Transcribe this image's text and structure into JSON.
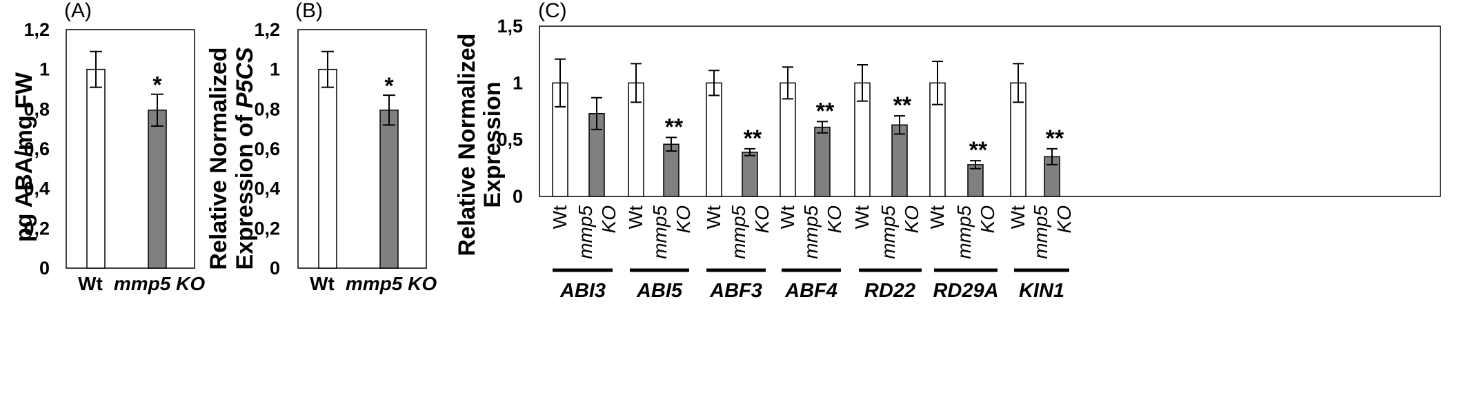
{
  "chart_data": [
    {
      "type": "bar",
      "panel_label": "(A)",
      "ylabel": "pg ABA/mg FW",
      "ylim": [
        0,
        1.2
      ],
      "yticks": [
        "0",
        "0,2",
        "0,4",
        "0,6",
        "0,8",
        "1",
        "1,2"
      ],
      "categories": [
        {
          "text": "Wt",
          "italic": false
        },
        {
          "text": "mmp5 KO",
          "italic": true
        }
      ],
      "values": [
        1.0,
        0.795
      ],
      "errors": [
        0.09,
        0.08
      ],
      "significance": [
        "",
        "*"
      ],
      "colors": [
        "#ffffff",
        "#808080"
      ]
    },
    {
      "type": "bar",
      "panel_label": "(B)",
      "ylabel_lines": [
        {
          "text": "Relative Normalized",
          "italic_part": ""
        },
        {
          "text": "Expression of ",
          "italic_part": "P5CS"
        }
      ],
      "ylim": [
        0,
        1.2
      ],
      "yticks": [
        "0",
        "0,2",
        "0,4",
        "0,6",
        "0,8",
        "1",
        "1,2"
      ],
      "categories": [
        {
          "text": "Wt",
          "italic": false
        },
        {
          "text": "mmp5 KO",
          "italic": true
        }
      ],
      "values": [
        1.0,
        0.795
      ],
      "errors": [
        0.09,
        0.075
      ],
      "significance": [
        "",
        "*"
      ],
      "colors": [
        "#ffffff",
        "#808080"
      ]
    },
    {
      "type": "bar",
      "panel_label": "(C)",
      "ylabel_lines": [
        "Relative Normalized",
        "Expression"
      ],
      "ylim": [
        0,
        1.5
      ],
      "yticks": [
        "0",
        "0,5",
        "1",
        "1,5"
      ],
      "sample_labels": {
        "wt": "Wt",
        "ko_line1": "mmp5",
        "ko_line2": "KO"
      },
      "groups": [
        {
          "gene": "ABI3",
          "values": [
            1.0,
            0.73
          ],
          "errors": [
            0.21,
            0.14
          ],
          "significance": [
            "",
            ""
          ]
        },
        {
          "gene": "ABI5",
          "values": [
            1.0,
            0.46
          ],
          "errors": [
            0.17,
            0.06
          ],
          "significance": [
            "",
            "**"
          ]
        },
        {
          "gene": "ABF3",
          "values": [
            1.0,
            0.39
          ],
          "errors": [
            0.11,
            0.03
          ],
          "significance": [
            "",
            "**"
          ]
        },
        {
          "gene": "ABF4",
          "values": [
            1.0,
            0.61
          ],
          "errors": [
            0.14,
            0.05
          ],
          "significance": [
            "",
            "**"
          ]
        },
        {
          "gene": "RD22",
          "values": [
            1.0,
            0.63
          ],
          "errors": [
            0.16,
            0.08
          ],
          "significance": [
            "",
            "**"
          ]
        },
        {
          "gene": "RD29A",
          "values": [
            1.0,
            0.28
          ],
          "errors": [
            0.19,
            0.035
          ],
          "significance": [
            "",
            "**"
          ]
        },
        {
          "gene": "KIN1",
          "values": [
            1.0,
            0.35
          ],
          "errors": [
            0.17,
            0.07
          ],
          "significance": [
            "",
            "**"
          ]
        }
      ],
      "colors": [
        "#ffffff",
        "#808080"
      ]
    }
  ]
}
